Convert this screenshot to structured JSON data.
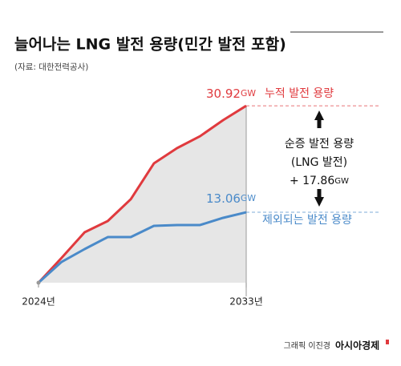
{
  "chart_data": {
    "type": "line",
    "title": "늘어나는 LNG 발전 용량(민간 발전 포함)",
    "source": "(자료: 대한전력공사)",
    "categories": [
      "2024년",
      null,
      null,
      null,
      null,
      null,
      null,
      null,
      null,
      "2033년"
    ],
    "series": [
      {
        "name": "누적 발전 용량",
        "color": "#e03a3e",
        "values": [
          1.25,
          5.41,
          9.71,
          11.59,
          15.26,
          21.26,
          23.81,
          25.82,
          28.51,
          30.92
        ],
        "value_labels": [
          null,
          null,
          null,
          null,
          null,
          null,
          null,
          null,
          null,
          "30.92GW"
        ]
      },
      {
        "name": "제외되는 발전 용량",
        "color": "#4a8ac9",
        "values": [
          1.25,
          4.74,
          6.89,
          8.9,
          8.9,
          10.78,
          10.92,
          10.92,
          12.13,
          13.06
        ],
        "value_labels": [
          null,
          null,
          null,
          null,
          null,
          null,
          null,
          null,
          null,
          "13.06GW"
        ]
      }
    ],
    "ylim": [
      0,
      35
    ],
    "fill_color": "#e6e6e6",
    "annotations": [
      "순증 발전 용량",
      "(LNG 발전)",
      "+ 17.86GW"
    ],
    "credit": "그래픽 이진경",
    "publisher": "아시아경제"
  }
}
